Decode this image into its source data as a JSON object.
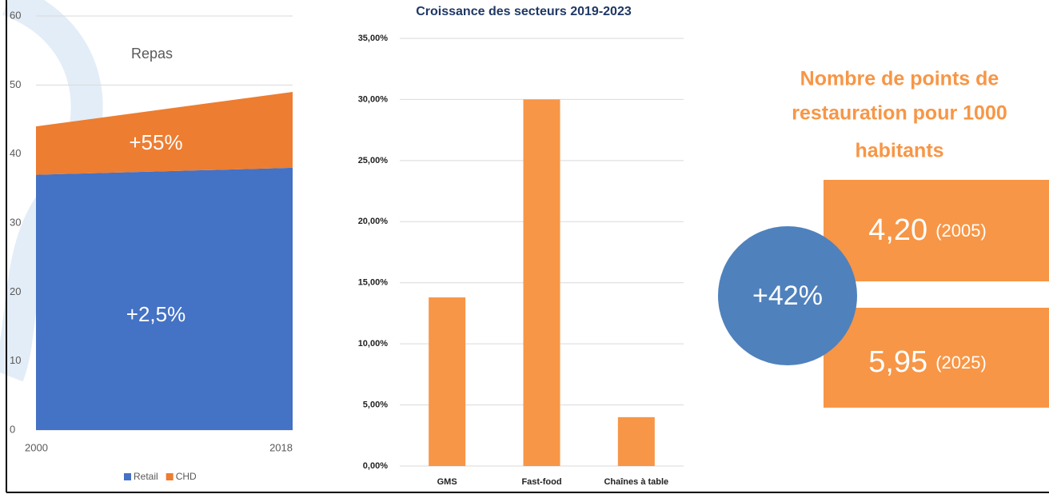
{
  "chart_data": [
    {
      "type": "area",
      "stacked": true,
      "title": "Repas",
      "x": [
        2000,
        2018
      ],
      "xlim": [
        2000,
        2018
      ],
      "xticks": [
        2000,
        2018
      ],
      "series": [
        {
          "name": "Retail",
          "color": "#4472c4",
          "values": [
            37,
            38
          ]
        },
        {
          "name": "CHD",
          "color": "#ed7d31",
          "values": [
            7,
            11
          ]
        }
      ],
      "annotations": [
        "+55%",
        "+2,5%"
      ],
      "ylim": [
        0,
        60
      ],
      "yticks": [
        0,
        10,
        20,
        30,
        40,
        50,
        60
      ],
      "grid": true,
      "legend": "bottom"
    },
    {
      "type": "bar",
      "title": "Croissance des secteurs 2019-2023",
      "categories": [
        "GMS",
        "Fast-food",
        "Chaînes à table"
      ],
      "values": [
        13.8,
        30,
        4
      ],
      "color": "#f79646",
      "ylim": [
        0,
        35
      ],
      "yticks": [
        {
          "value": 0,
          "label": "0,00%"
        },
        {
          "value": 5,
          "label": "5,00%"
        },
        {
          "value": 10,
          "label": "10,00%"
        },
        {
          "value": 15,
          "label": "15,00%"
        },
        {
          "value": 20,
          "label": "20,00%"
        },
        {
          "value": 25,
          "label": "25,00%"
        },
        {
          "value": 30,
          "label": "30,00%"
        },
        {
          "value": 35,
          "label": "35,00%"
        }
      ],
      "grid": true
    }
  ],
  "infographic": {
    "title": [
      "Nombre de points de",
      "restauration pour 1000",
      "habitants"
    ],
    "boxes": [
      {
        "value": "4,20",
        "year": "(2005)"
      },
      {
        "value": "5,95",
        "year": "(2025)"
      }
    ],
    "growth": "+42%"
  }
}
